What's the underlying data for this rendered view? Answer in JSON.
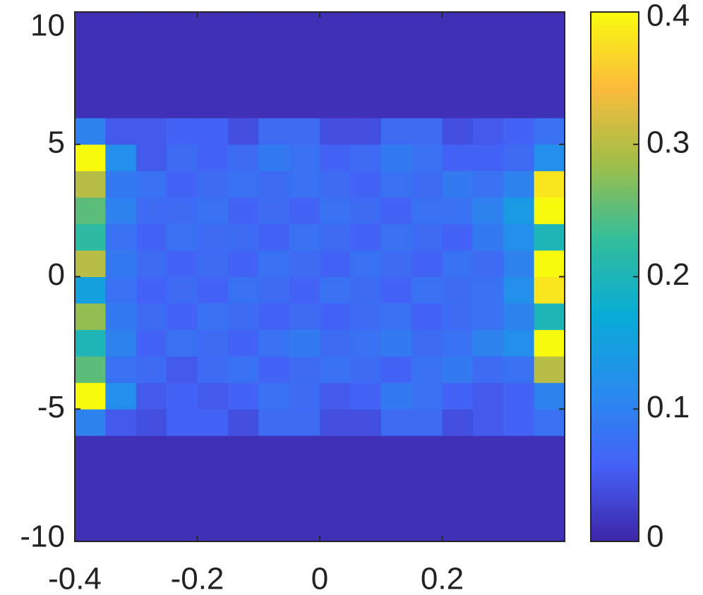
{
  "chart_data": {
    "type": "heatmap",
    "x": [
      -0.375,
      -0.325,
      -0.275,
      -0.225,
      -0.175,
      -0.125,
      -0.075,
      -0.025,
      0.025,
      0.075,
      0.125,
      0.175,
      0.225,
      0.275,
      0.325,
      0.375
    ],
    "y": [
      -9.5,
      -8.5,
      -7.5,
      -6.5,
      -5.5,
      -4.5,
      -3.5,
      -2.5,
      -1.5,
      -0.5,
      0.5,
      1.5,
      2.5,
      3.5,
      4.5,
      5.5,
      6.5,
      7.5,
      8.5,
      9.5
    ],
    "z": [
      [
        0.01,
        0.01,
        0.01,
        0.01,
        0.01,
        0.01,
        0.01,
        0.01,
        0.01,
        0.01,
        0.01,
        0.01,
        0.01,
        0.01,
        0.01,
        0.01
      ],
      [
        0.01,
        0.01,
        0.01,
        0.01,
        0.01,
        0.01,
        0.01,
        0.01,
        0.01,
        0.01,
        0.01,
        0.01,
        0.01,
        0.01,
        0.01,
        0.01
      ],
      [
        0.01,
        0.01,
        0.01,
        0.01,
        0.01,
        0.01,
        0.01,
        0.01,
        0.01,
        0.01,
        0.01,
        0.01,
        0.01,
        0.01,
        0.01,
        0.01
      ],
      [
        0.01,
        0.01,
        0.01,
        0.01,
        0.01,
        0.01,
        0.01,
        0.01,
        0.01,
        0.01,
        0.01,
        0.01,
        0.01,
        0.01,
        0.01,
        0.01
      ],
      [
        0.1,
        0.05,
        0.04,
        0.06,
        0.06,
        0.04,
        0.07,
        0.07,
        0.04,
        0.04,
        0.07,
        0.07,
        0.04,
        0.05,
        0.06,
        0.08
      ],
      [
        0.4,
        0.12,
        0.05,
        0.06,
        0.05,
        0.06,
        0.08,
        0.07,
        0.05,
        0.06,
        0.09,
        0.08,
        0.06,
        0.05,
        0.06,
        0.1
      ],
      [
        0.25,
        0.08,
        0.07,
        0.05,
        0.07,
        0.08,
        0.06,
        0.07,
        0.08,
        0.07,
        0.06,
        0.08,
        0.09,
        0.07,
        0.08,
        0.3
      ],
      [
        0.2,
        0.1,
        0.06,
        0.08,
        0.07,
        0.06,
        0.08,
        0.09,
        0.07,
        0.08,
        0.09,
        0.07,
        0.08,
        0.1,
        0.12,
        0.4
      ],
      [
        0.28,
        0.09,
        0.07,
        0.06,
        0.08,
        0.07,
        0.06,
        0.07,
        0.06,
        0.07,
        0.08,
        0.06,
        0.07,
        0.08,
        0.1,
        0.2
      ],
      [
        0.15,
        0.08,
        0.06,
        0.07,
        0.06,
        0.08,
        0.07,
        0.06,
        0.08,
        0.07,
        0.06,
        0.08,
        0.07,
        0.08,
        0.12,
        0.38
      ],
      [
        0.3,
        0.09,
        0.07,
        0.06,
        0.07,
        0.06,
        0.08,
        0.07,
        0.06,
        0.08,
        0.07,
        0.06,
        0.08,
        0.07,
        0.1,
        0.4
      ],
      [
        0.22,
        0.08,
        0.06,
        0.08,
        0.07,
        0.07,
        0.06,
        0.08,
        0.07,
        0.06,
        0.08,
        0.07,
        0.06,
        0.09,
        0.12,
        0.2
      ],
      [
        0.25,
        0.1,
        0.07,
        0.07,
        0.08,
        0.06,
        0.07,
        0.06,
        0.08,
        0.07,
        0.06,
        0.08,
        0.08,
        0.1,
        0.14,
        0.4
      ],
      [
        0.3,
        0.09,
        0.08,
        0.06,
        0.07,
        0.08,
        0.07,
        0.08,
        0.07,
        0.06,
        0.08,
        0.07,
        0.09,
        0.08,
        0.1,
        0.38
      ],
      [
        0.4,
        0.12,
        0.05,
        0.07,
        0.06,
        0.07,
        0.09,
        0.08,
        0.06,
        0.07,
        0.09,
        0.08,
        0.06,
        0.06,
        0.07,
        0.12
      ],
      [
        0.1,
        0.05,
        0.05,
        0.06,
        0.06,
        0.04,
        0.07,
        0.07,
        0.04,
        0.04,
        0.07,
        0.07,
        0.04,
        0.05,
        0.06,
        0.08
      ],
      [
        0.01,
        0.01,
        0.01,
        0.01,
        0.01,
        0.01,
        0.01,
        0.01,
        0.01,
        0.01,
        0.01,
        0.01,
        0.01,
        0.01,
        0.01,
        0.01
      ],
      [
        0.01,
        0.01,
        0.01,
        0.01,
        0.01,
        0.01,
        0.01,
        0.01,
        0.01,
        0.01,
        0.01,
        0.01,
        0.01,
        0.01,
        0.01,
        0.01
      ],
      [
        0.01,
        0.01,
        0.01,
        0.01,
        0.01,
        0.01,
        0.01,
        0.01,
        0.01,
        0.01,
        0.01,
        0.01,
        0.01,
        0.01,
        0.01,
        0.01
      ],
      [
        0.01,
        0.01,
        0.01,
        0.01,
        0.01,
        0.01,
        0.01,
        0.01,
        0.01,
        0.01,
        0.01,
        0.01,
        0.01,
        0.01,
        0.01,
        0.01
      ]
    ],
    "xlim": [
      -0.4,
      0.4
    ],
    "xticks": [
      -0.4,
      -0.2,
      0,
      0.2
    ],
    "ylim": [
      -10,
      10
    ],
    "yticks": [
      -10,
      -5,
      0,
      5,
      10
    ],
    "clim": [
      0,
      0.4
    ],
    "cticks": [
      0,
      0.1,
      0.2,
      0.3,
      0.4
    ],
    "colormap": [
      "#3e26a8",
      "#4461f6",
      "#278ced",
      "#09acd6",
      "#33bd9a",
      "#a0be48",
      "#fcbb3d",
      "#f9fb0e"
    ]
  }
}
